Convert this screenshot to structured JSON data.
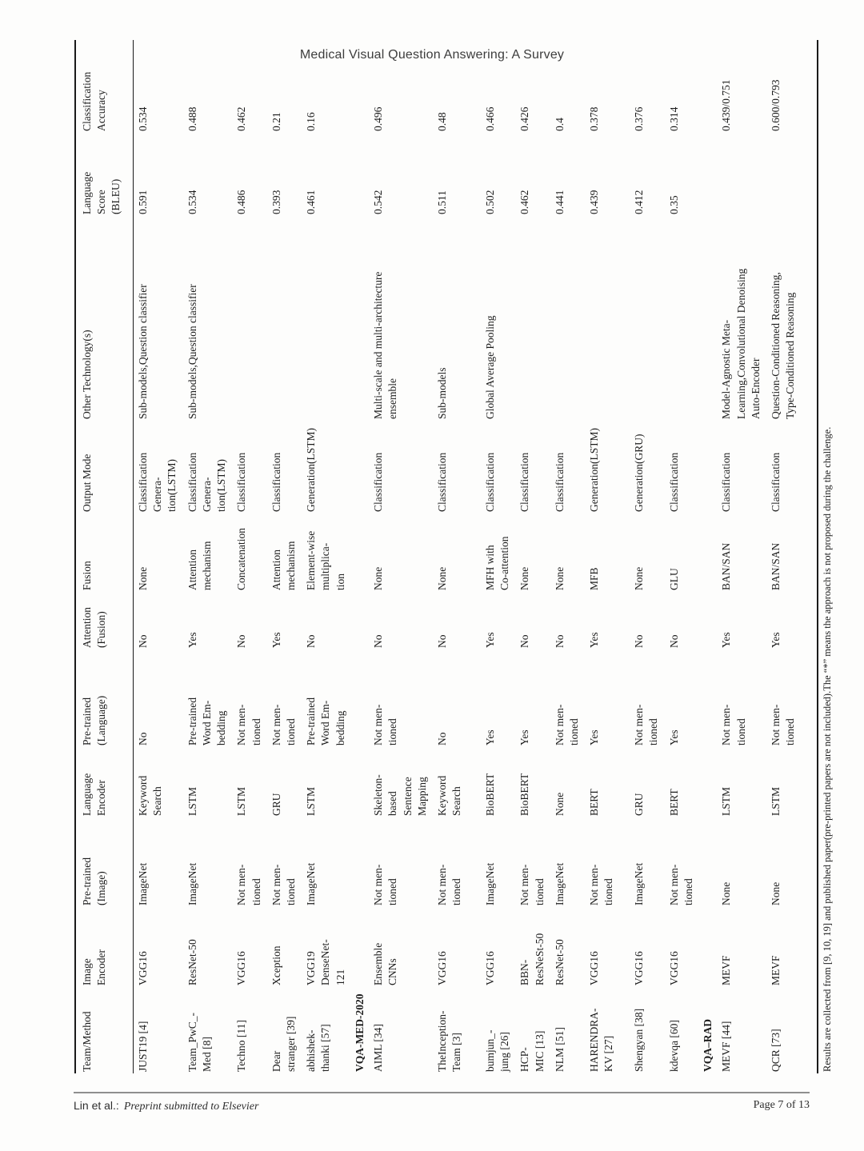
{
  "page_header": {
    "title": "Medical Visual Question Answering: A Survey"
  },
  "table": {
    "columns": [
      "Team/Method",
      "Image\nEncoder",
      "Pre-trained\n(Image)",
      "Language\nEncoder",
      "Pre-trained\n(Language)",
      "Attention\n(Fusion)",
      "Fusion",
      "Output Mode",
      "Other Technology(s)",
      "Language\nScore\n(BLEU)",
      "Classification\nAccuracy"
    ],
    "rows": [
      {
        "type": "data",
        "cells": [
          "JUST19 [4]",
          "VGG16",
          "ImageNet",
          "Keyword\nSearch",
          "No",
          "No",
          "None",
          "Classification\nGenera-\ntion(LSTM)",
          "Sub-models,Question classifier",
          "0.591",
          "0.534"
        ]
      },
      {
        "type": "data",
        "cells": [
          "Team_PwC_-\nMed [8]",
          "ResNet-50",
          "ImageNet",
          "LSTM",
          "Pre-trained\nWord Em-\nbedding",
          "Yes",
          "Attention\nmechanism",
          "Classification\nGenera-\ntion(LSTM)",
          "Sub-models,Question classifier",
          "0.534",
          "0.488"
        ]
      },
      {
        "type": "data",
        "cells": [
          "Techno [11]",
          "VGG16",
          "Not men-\ntioned",
          "LSTM",
          "Not men-\ntioned",
          "No",
          "Concatenation",
          "Classification",
          "",
          "0.486",
          "0.462"
        ]
      },
      {
        "type": "data",
        "cells": [
          "Dear\nstranger [39]",
          "Xception",
          "Not men-\ntioned",
          "GRU",
          "Not men-\ntioned",
          "Yes",
          "Attention\nmechanism",
          "Classification",
          "",
          "0.393",
          "0.21"
        ]
      },
      {
        "type": "data",
        "cells": [
          "abhishek-\nthanki [57]",
          "VGG19\nDenseNet-\n121",
          "ImageNet",
          "LSTM",
          "Pre-trained\nWord Em-\nbedding",
          "No",
          "Element-wise\nmultiplica-\ntion",
          "Generation(LSTM)",
          "",
          "0.461",
          "0.16"
        ]
      },
      {
        "type": "section",
        "label": "VQA-MED-2020"
      },
      {
        "type": "data",
        "cells": [
          "AIML [34]",
          "Ensemble\nCNNs",
          "Not men-\ntioned",
          "Skeleton-\nbased\nSentence\nMapping",
          "Not men-\ntioned",
          "No",
          "None",
          "Classification",
          "Multi-scale and multi-architecture\nensemble",
          "0.542",
          "0.496"
        ]
      },
      {
        "type": "data",
        "cells": [
          "TheInception-\nTeam [3]",
          "VGG16",
          "Not men-\ntioned",
          "Keyword\nSearch",
          "No",
          "No",
          "None",
          "Classification",
          "Sub-models",
          "0.511",
          "0.48"
        ]
      },
      {
        "type": "data",
        "cells": [
          "bumjun_-\njung [26]",
          "VGG16",
          "ImageNet",
          "BioBERT",
          "Yes",
          "Yes",
          "MFH with\nCo-attention",
          "Classification",
          "Global Average Pooling",
          "0.502",
          "0.466"
        ]
      },
      {
        "type": "data",
        "cells": [
          "HCP-\nMIC [13]",
          "BBN-\nResNeSt-50",
          "Not men-\ntioned",
          "BioBERT",
          "Yes",
          "No",
          "None",
          "Classification",
          "",
          "0.462",
          "0.426"
        ]
      },
      {
        "type": "data",
        "cells": [
          "NLM [51]",
          "ResNet-50",
          "ImageNet",
          "None",
          "Not men-\ntioned",
          "No",
          "None",
          "Classification",
          "",
          "0.441",
          "0.4"
        ]
      },
      {
        "type": "data",
        "cells": [
          "HARENDRA-\nKV [27]",
          "VGG16",
          "Not men-\ntioned",
          "BERT",
          "Yes",
          "Yes",
          "MFB",
          "Generation(LSTM)",
          "",
          "0.439",
          "0.378"
        ]
      },
      {
        "type": "data",
        "cells": [
          "Shengyan [38]",
          "VGG16",
          "ImageNet",
          "GRU",
          "Not men-\ntioned",
          "No",
          "None",
          "Generation(GRU)",
          "",
          "0.412",
          "0.376"
        ]
      },
      {
        "type": "data",
        "cells": [
          "kdevqa [60]",
          "VGG16",
          "Not men-\ntioned",
          "BERT",
          "Yes",
          "No",
          "GLU",
          "Classification",
          "",
          "0.35",
          "0.314"
        ]
      },
      {
        "type": "section",
        "label": "VQA–RAD"
      },
      {
        "type": "data",
        "cells": [
          "MEVF [44]",
          "MEVF",
          "None",
          "LSTM",
          "Not men-\ntioned",
          "Yes",
          "BAN/SAN",
          "Classification",
          "Model-Agnostic Meta-\nLearning,Convolutional Denoising\nAuto-Encoder",
          "",
          "0.439/0.751"
        ]
      },
      {
        "type": "data",
        "cells": [
          "QCR [73]",
          "MEVF",
          "None",
          "LSTM",
          "Not men-\ntioned",
          "Yes",
          "BAN/SAN",
          "Classification",
          "Question-Conditioned Reasoning,\nType-Conditioned Reasoning",
          "",
          "0.600/0.793"
        ]
      }
    ],
    "footnote": "Results are collected from [9, 10, 19] and published paper(pre-printed papers are not included).The “*” means the approach is not proposed during the challenge."
  },
  "page_footer": {
    "author": "Lin et al.:",
    "note": "Preprint submitted to Elsevier",
    "page_number": "Page 7 of 13"
  }
}
